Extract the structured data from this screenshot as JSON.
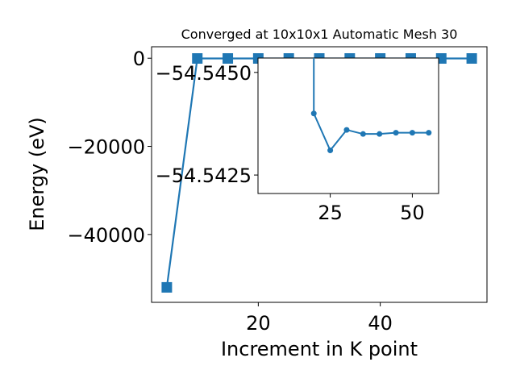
{
  "chart_data": [
    {
      "type": "line",
      "title": "Converged at 10x10x1 Automatic Mesh 30",
      "xlabel": "Increment in K point",
      "ylabel": "Energy (eV)",
      "xlim": [
        2.5,
        57.5
      ],
      "ylim": [
        -55400,
        2600
      ],
      "xticks": [
        20,
        40
      ],
      "yticks": [
        0,
        -20000,
        -40000
      ],
      "ytick_labels": [
        "0",
        "−20000",
        "−40000"
      ],
      "marker": "square",
      "color": "#1f77b4",
      "series": [
        {
          "x": [
            5,
            10,
            15,
            20,
            25,
            30,
            35,
            40,
            45,
            50,
            55
          ],
          "y": [
            -52000,
            -54.5443,
            -54.5432,
            -54.5437,
            -54.5433,
            -54.5433,
            -54.5434,
            -54.5434,
            -54.5434,
            -54.5434,
            -54.5434
          ]
        }
      ]
    },
    {
      "type": "line",
      "title": "",
      "xlabel": "",
      "ylabel": "",
      "xlim": [
        3,
        58
      ],
      "ylim": [
        -54.54205,
        -54.54535
      ],
      "yaxis_inverted": true,
      "xticks": [
        25,
        50
      ],
      "yticks": [
        -54.545,
        -54.5425
      ],
      "ytick_labels": [
        "−54.5450",
        "−54.5425"
      ],
      "marker": "circle",
      "color": "#1f77b4",
      "series": [
        {
          "x": [
            20,
            20,
            25,
            30,
            35,
            40,
            45,
            50,
            55
          ],
          "y": [
            -54.5455,
            -54.544,
            -54.5431,
            -54.5436,
            -54.5435,
            -54.5435,
            -54.54353,
            -54.54353,
            -54.54353
          ]
        }
      ]
    }
  ]
}
